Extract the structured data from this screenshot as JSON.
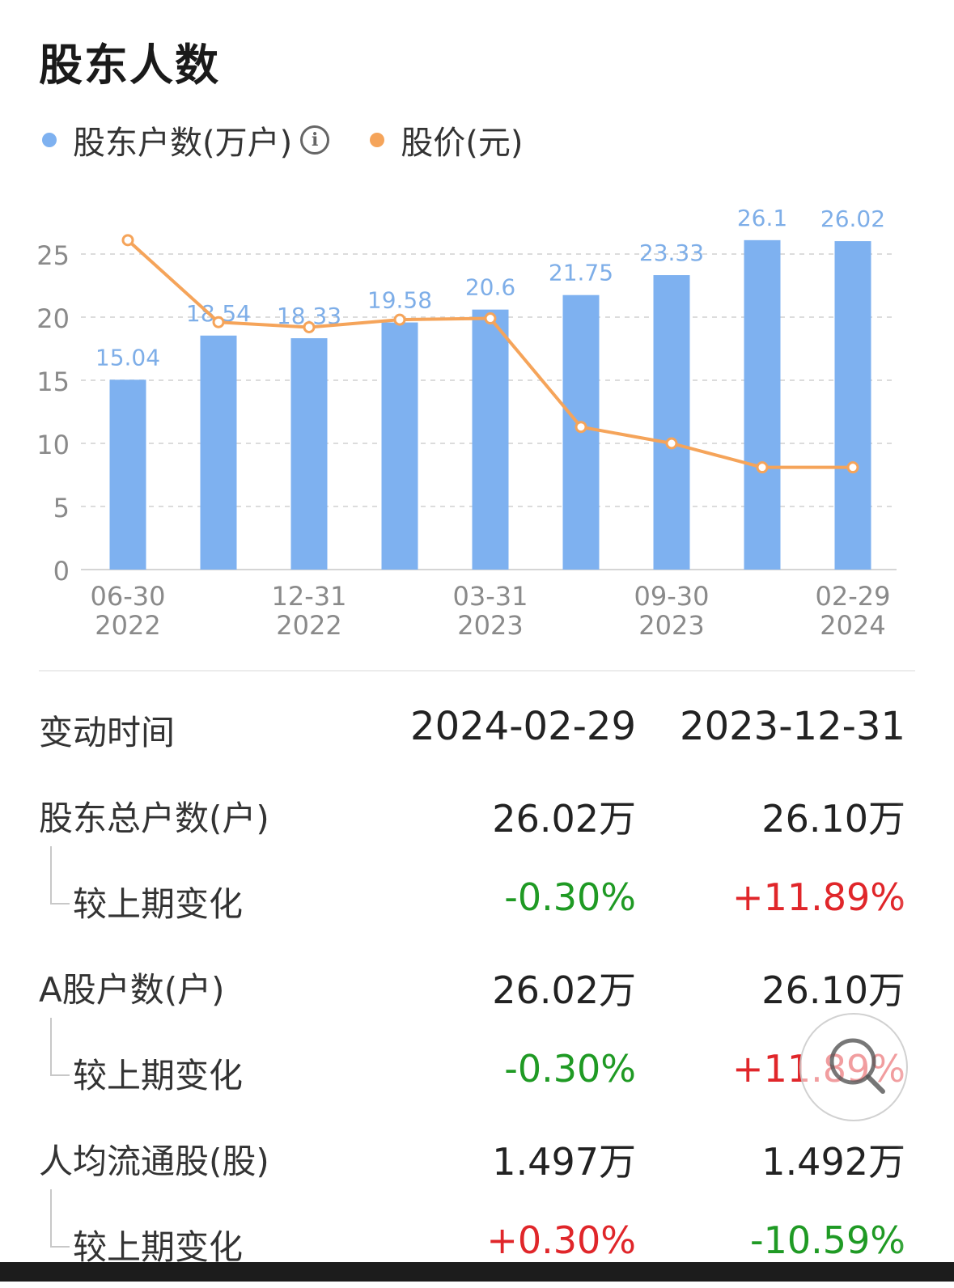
{
  "page": {
    "title": "股东人数"
  },
  "legend": {
    "series1": "股东户数(万户)",
    "series2": "股价(元)",
    "colors": {
      "bar": "#7eb1f0",
      "line": "#f5a45a",
      "bar_label": "#7eaee8"
    }
  },
  "chart_data": {
    "type": "bar",
    "categories": [
      "06-30 2022",
      "",
      "12-31 2022",
      "",
      "03-31 2023",
      "",
      "09-30 2023",
      "",
      "02-29 2024"
    ],
    "x_tick_labels": [
      {
        "date": "06-30",
        "year": "2022"
      },
      {
        "date": "12-31",
        "year": "2022"
      },
      {
        "date": "03-31",
        "year": "2023"
      },
      {
        "date": "09-30",
        "year": "2023"
      },
      {
        "date": "02-29",
        "year": "2024"
      }
    ],
    "series": [
      {
        "name": "股东户数(万户)",
        "type": "bar",
        "values": [
          15.04,
          18.54,
          18.33,
          19.58,
          20.6,
          21.75,
          23.33,
          26.1,
          26.02
        ]
      },
      {
        "name": "股价(元)",
        "type": "line",
        "values": [
          26.1,
          19.6,
          19.2,
          19.8,
          19.9,
          11.3,
          10.0,
          8.1,
          8.1
        ]
      }
    ],
    "data_labels": [
      "15.04",
      "18.54",
      "18.33",
      "19.58",
      "20.6",
      "21.75",
      "23.33",
      "26.1",
      "26.02"
    ],
    "y_ticks": [
      0,
      5,
      10,
      15,
      20,
      25
    ],
    "ylim": [
      0,
      26.1
    ],
    "grid": true,
    "legend_position": "top-left"
  },
  "table": {
    "header": {
      "label": "变动时间",
      "v1": "2024-02-29",
      "v2": "2023-12-31"
    },
    "rows": [
      {
        "label": "股东总户数(户)",
        "v1": "26.02万",
        "v2": "26.10万"
      },
      {
        "label": "较上期变化",
        "v1": "-0.30%",
        "v2": "+11.89%"
      },
      {
        "label": "A股户数(户)",
        "v1": "26.02万",
        "v2": "26.10万"
      },
      {
        "label": "较上期变化",
        "v1": "-0.30%",
        "v2": "+11.89%"
      },
      {
        "label": "人均流通股(股)",
        "v1": "1.497万",
        "v2": "1.492万"
      },
      {
        "label": "较上期变化",
        "v1": "+0.30%",
        "v2": "-10.59%"
      }
    ]
  },
  "icons": {
    "info": "info-circle-icon",
    "zoom": "magnifier-icon"
  }
}
